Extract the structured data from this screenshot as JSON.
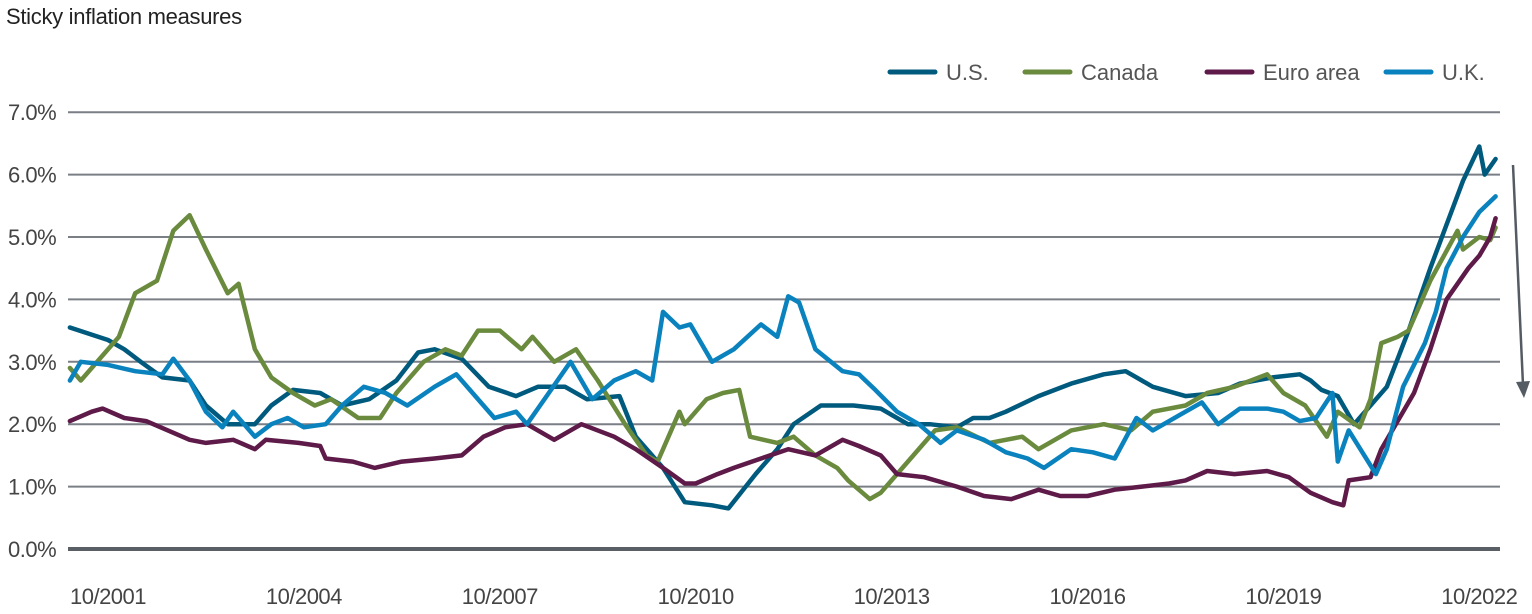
{
  "chart_data": {
    "type": "line",
    "title": "Sticky inflation measures",
    "xlabel": "",
    "ylabel": "",
    "ylim": [
      0,
      7
    ],
    "yticks": [
      "0.0%",
      "1.0%",
      "2.0%",
      "3.0%",
      "4.0%",
      "5.0%",
      "6.0%",
      "7.0%"
    ],
    "xticks": [
      "10/2001",
      "10/2004",
      "10/2007",
      "10/2010",
      "10/2013",
      "10/2016",
      "10/2019",
      "10/2022"
    ],
    "grid": "horizontal",
    "legend_position": "top-right",
    "annotation": "downward arrow at right edge",
    "series": [
      {
        "name": "U.S.",
        "color": "#005a7d",
        "x": [
          "2001-03",
          "2001-10",
          "2002-01",
          "2002-04",
          "2002-08",
          "2003-01",
          "2003-04",
          "2003-08",
          "2004-01",
          "2004-04",
          "2004-08",
          "2005-01",
          "2005-05",
          "2005-10",
          "2006-03",
          "2006-07",
          "2006-10",
          "2007-03",
          "2007-08",
          "2008-01",
          "2008-05",
          "2008-10",
          "2009-02",
          "2009-08",
          "2009-11",
          "2010-04",
          "2010-08",
          "2011-01",
          "2011-04",
          "2011-09",
          "2012-01",
          "2012-04",
          "2012-09",
          "2013-03",
          "2013-08",
          "2014-01",
          "2014-05",
          "2014-10",
          "2015-01",
          "2015-04",
          "2015-07",
          "2016-01",
          "2016-07",
          "2017-01",
          "2017-05",
          "2017-10",
          "2018-04",
          "2018-10",
          "2019-02",
          "2019-08",
          "2020-01",
          "2020-03",
          "2020-05",
          "2020-08",
          "2020-11",
          "2021-02",
          "2021-05",
          "2021-09",
          "2022-01",
          "2022-04",
          "2022-07",
          "2022-10",
          "2022-11",
          "2023-01"
        ],
        "y": [
          3.55,
          3.35,
          3.2,
          3.0,
          2.75,
          2.7,
          2.3,
          2.0,
          2.0,
          2.3,
          2.55,
          2.5,
          2.3,
          2.4,
          2.7,
          3.15,
          3.2,
          3.05,
          2.6,
          2.45,
          2.6,
          2.6,
          2.4,
          2.45,
          1.8,
          1.3,
          0.75,
          0.7,
          0.65,
          1.2,
          1.6,
          2.0,
          2.3,
          2.3,
          2.25,
          2.0,
          2.0,
          1.95,
          2.1,
          2.1,
          2.2,
          2.45,
          2.65,
          2.8,
          2.85,
          2.6,
          2.45,
          2.5,
          2.65,
          2.75,
          2.8,
          2.7,
          2.55,
          2.45,
          2.0,
          2.3,
          2.6,
          3.5,
          4.5,
          5.2,
          5.9,
          6.45,
          6.0,
          6.25
        ]
      },
      {
        "name": "Canada",
        "color": "#6a8a3e",
        "x": [
          "2001-03",
          "2001-05",
          "2001-12",
          "2002-03",
          "2002-07",
          "2002-10",
          "2003-01",
          "2003-04",
          "2003-08",
          "2003-10",
          "2004-01",
          "2004-04",
          "2004-08",
          "2004-12",
          "2005-03",
          "2005-08",
          "2005-12",
          "2006-03",
          "2006-08",
          "2006-12",
          "2007-03",
          "2007-06",
          "2007-10",
          "2008-02",
          "2008-04",
          "2008-08",
          "2008-12",
          "2009-04",
          "2009-09",
          "2010-01",
          "2010-03",
          "2010-07",
          "2010-08",
          "2010-12",
          "2011-03",
          "2011-06",
          "2011-08",
          "2012-01",
          "2012-04",
          "2012-08",
          "2012-12",
          "2013-02",
          "2013-06",
          "2013-08",
          "2014-01",
          "2014-06",
          "2014-10",
          "2015-04",
          "2015-10",
          "2016-01",
          "2016-07",
          "2017-01",
          "2017-06",
          "2017-10",
          "2018-04",
          "2018-08",
          "2019-01",
          "2019-07",
          "2019-10",
          "2020-02",
          "2020-06",
          "2020-08",
          "2020-12",
          "2021-02",
          "2021-04",
          "2021-07",
          "2021-09",
          "2022-01",
          "2022-06",
          "2022-07",
          "2022-10",
          "2022-12",
          "2023-01"
        ],
        "y": [
          2.9,
          2.7,
          3.4,
          4.1,
          4.3,
          5.1,
          5.35,
          4.8,
          4.1,
          4.25,
          3.2,
          2.75,
          2.5,
          2.3,
          2.4,
          2.1,
          2.1,
          2.5,
          3.0,
          3.2,
          3.1,
          3.5,
          3.5,
          3.2,
          3.4,
          3.0,
          3.2,
          2.7,
          2.0,
          1.5,
          1.4,
          2.2,
          2.0,
          2.4,
          2.5,
          2.55,
          1.8,
          1.7,
          1.8,
          1.5,
          1.3,
          1.1,
          0.8,
          0.9,
          1.4,
          1.9,
          1.95,
          1.7,
          1.8,
          1.6,
          1.9,
          2.0,
          1.9,
          2.2,
          2.3,
          2.5,
          2.6,
          2.8,
          2.5,
          2.3,
          1.8,
          2.2,
          1.95,
          2.4,
          3.3,
          3.4,
          3.5,
          4.3,
          5.1,
          4.8,
          5.0,
          4.95,
          5.15
        ]
      },
      {
        "name": "Euro area",
        "color": "#5e1a48",
        "x": [
          "2001-03",
          "2001-07",
          "2001-09",
          "2002-01",
          "2002-05",
          "2002-09",
          "2003-01",
          "2003-04",
          "2003-09",
          "2004-01",
          "2004-03",
          "2004-09",
          "2005-01",
          "2005-02",
          "2005-07",
          "2005-11",
          "2006-04",
          "2006-10",
          "2007-03",
          "2007-07",
          "2007-11",
          "2008-03",
          "2008-08",
          "2009-01",
          "2009-07",
          "2009-11",
          "2010-04",
          "2010-08",
          "2010-10",
          "2011-02",
          "2011-05",
          "2011-10",
          "2012-03",
          "2012-08",
          "2013-01",
          "2013-04",
          "2013-08",
          "2013-11",
          "2014-04",
          "2014-10",
          "2015-03",
          "2015-08",
          "2016-01",
          "2016-05",
          "2016-10",
          "2017-03",
          "2017-08",
          "2018-01",
          "2018-04",
          "2018-08",
          "2019-01",
          "2019-07",
          "2019-11",
          "2020-03",
          "2020-07",
          "2020-09",
          "2020-10",
          "2021-02",
          "2021-04",
          "2021-08",
          "2021-10",
          "2022-01",
          "2022-04",
          "2022-08",
          "2022-10",
          "2022-12",
          "2023-01"
        ],
        "y": [
          2.05,
          2.2,
          2.25,
          2.1,
          2.05,
          1.9,
          1.75,
          1.7,
          1.75,
          1.6,
          1.75,
          1.7,
          1.65,
          1.45,
          1.4,
          1.3,
          1.4,
          1.45,
          1.5,
          1.8,
          1.95,
          2.0,
          1.75,
          2.0,
          1.8,
          1.6,
          1.3,
          1.05,
          1.05,
          1.2,
          1.3,
          1.45,
          1.6,
          1.5,
          1.75,
          1.65,
          1.5,
          1.2,
          1.15,
          1.0,
          0.85,
          0.8,
          0.95,
          0.85,
          0.85,
          0.95,
          1.0,
          1.05,
          1.1,
          1.25,
          1.2,
          1.25,
          1.15,
          0.9,
          0.75,
          0.7,
          1.1,
          1.15,
          1.6,
          2.2,
          2.5,
          3.2,
          4.0,
          4.5,
          4.7,
          5.0,
          5.3
        ]
      },
      {
        "name": "U.K.",
        "color": "#0a82be",
        "x": [
          "2001-03",
          "2001-05",
          "2001-10",
          "2002-03",
          "2002-08",
          "2002-10",
          "2003-01",
          "2003-04",
          "2003-07",
          "2003-09",
          "2004-01",
          "2004-04",
          "2004-07",
          "2004-10",
          "2005-02",
          "2005-05",
          "2005-09",
          "2006-01",
          "2006-05",
          "2006-10",
          "2007-02",
          "2007-05",
          "2007-09",
          "2008-01",
          "2008-03",
          "2008-07",
          "2008-11",
          "2009-03",
          "2009-07",
          "2009-11",
          "2010-02",
          "2010-04",
          "2010-07",
          "2010-09",
          "2011-01",
          "2011-05",
          "2011-10",
          "2012-01",
          "2012-03",
          "2012-05",
          "2012-08",
          "2013-01",
          "2013-04",
          "2013-07",
          "2013-11",
          "2014-03",
          "2014-07",
          "2014-10",
          "2015-03",
          "2015-07",
          "2015-11",
          "2016-02",
          "2016-07",
          "2016-11",
          "2017-03",
          "2017-07",
          "2017-10",
          "2018-03",
          "2018-07",
          "2018-10",
          "2019-02",
          "2019-07",
          "2019-10",
          "2020-01",
          "2020-04",
          "2020-07",
          "2020-08",
          "2020-10",
          "2021-03",
          "2021-05",
          "2021-08",
          "2021-12",
          "2022-02",
          "2022-04",
          "2022-07",
          "2022-10",
          "2023-01"
        ],
        "y": [
          2.7,
          3.0,
          2.95,
          2.85,
          2.8,
          3.05,
          2.7,
          2.2,
          1.95,
          2.2,
          1.8,
          2.0,
          2.1,
          1.95,
          2.0,
          2.3,
          2.6,
          2.5,
          2.3,
          2.6,
          2.8,
          2.5,
          2.1,
          2.2,
          2.0,
          2.5,
          3.0,
          2.4,
          2.7,
          2.85,
          2.7,
          3.8,
          3.55,
          3.6,
          3.0,
          3.2,
          3.6,
          3.4,
          4.05,
          3.95,
          3.2,
          2.85,
          2.8,
          2.55,
          2.2,
          2.0,
          1.7,
          1.9,
          1.75,
          1.55,
          1.45,
          1.3,
          1.6,
          1.55,
          1.45,
          2.1,
          1.9,
          2.15,
          2.35,
          2.0,
          2.25,
          2.25,
          2.2,
          2.05,
          2.1,
          2.5,
          1.4,
          1.9,
          1.2,
          1.6,
          2.6,
          3.3,
          3.8,
          4.5,
          5.0,
          5.4,
          5.65
        ]
      }
    ]
  }
}
